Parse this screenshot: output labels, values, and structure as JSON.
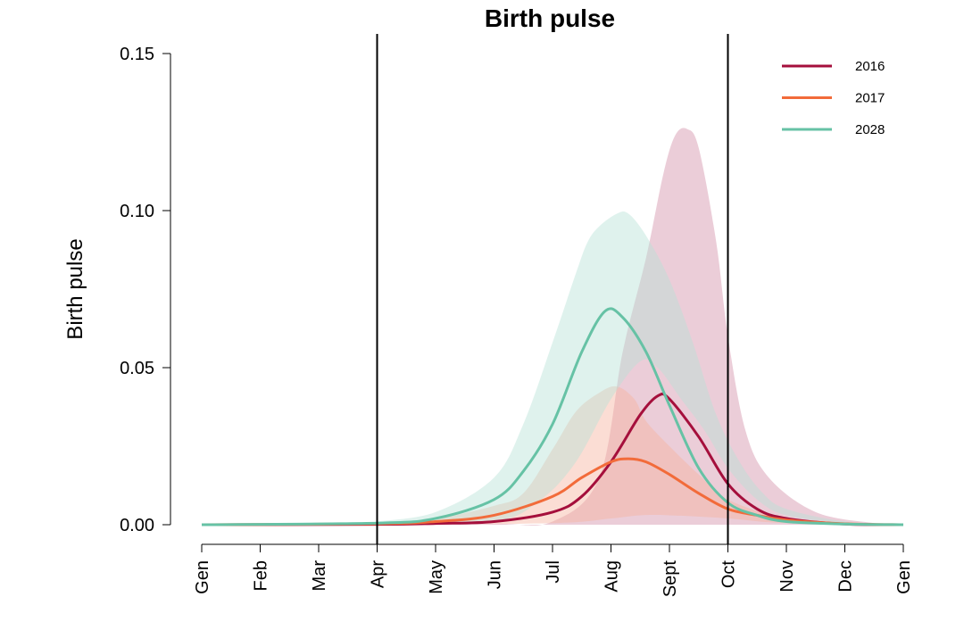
{
  "chart_data": {
    "type": "line",
    "title": "Birth pulse",
    "xlabel": "",
    "ylabel": "Birth pulse",
    "x_categories": [
      "Gen",
      "Feb",
      "Mar",
      "Apr",
      "May",
      "Jun",
      "Jul",
      "Aug",
      "Sept",
      "Oct",
      "Nov",
      "Dec",
      "Gen"
    ],
    "ylim": [
      0,
      0.15
    ],
    "y_ticks": [
      "0.00",
      "0.05",
      "0.10",
      "0.15"
    ],
    "y_tick_values": [
      0,
      0.05,
      0.1,
      0.15
    ],
    "vertical_lines_month_index": [
      3,
      9
    ],
    "legend_position": "top-right",
    "grid": false,
    "series": [
      {
        "name": "2016",
        "color": "#a50f3c",
        "band_color": "#c7708f",
        "band_opacity": 0.35,
        "points": [
          [
            0,
            0
          ],
          [
            3,
            0.0001
          ],
          [
            4,
            0.0004
          ],
          [
            5,
            0.001
          ],
          [
            6,
            0.004
          ],
          [
            6.5,
            0.009
          ],
          [
            7,
            0.02
          ],
          [
            7.5,
            0.035
          ],
          [
            7.8,
            0.041
          ],
          [
            8,
            0.04
          ],
          [
            8.5,
            0.028
          ],
          [
            9,
            0.013
          ],
          [
            9.5,
            0.005
          ],
          [
            10,
            0.002
          ],
          [
            11,
            0.0002
          ],
          [
            12,
            0
          ]
        ],
        "band_upper": [
          [
            3,
            0
          ],
          [
            5,
            0.0003
          ],
          [
            6,
            0.001
          ],
          [
            6.8,
            0.015
          ],
          [
            7.2,
            0.055
          ],
          [
            7.6,
            0.085
          ],
          [
            7.9,
            0.112
          ],
          [
            8.1,
            0.124
          ],
          [
            8.3,
            0.126
          ],
          [
            8.5,
            0.12
          ],
          [
            8.8,
            0.09
          ],
          [
            9.0,
            0.06
          ],
          [
            9.3,
            0.03
          ],
          [
            9.7,
            0.015
          ],
          [
            10.5,
            0.004
          ],
          [
            11.5,
            0.0005
          ],
          [
            12,
            0
          ]
        ],
        "band_lower": [
          [
            3,
            0
          ],
          [
            12,
            0
          ]
        ]
      },
      {
        "name": "2017",
        "color": "#f26b3a",
        "band_color": "#f7b3a0",
        "band_opacity": 0.45,
        "points": [
          [
            0,
            0
          ],
          [
            3,
            0.0003
          ],
          [
            4,
            0.001
          ],
          [
            5,
            0.003
          ],
          [
            6,
            0.009
          ],
          [
            6.5,
            0.015
          ],
          [
            7,
            0.02
          ],
          [
            7.3,
            0.021
          ],
          [
            7.6,
            0.02
          ],
          [
            8,
            0.016
          ],
          [
            8.5,
            0.01
          ],
          [
            9,
            0.005
          ],
          [
            9.5,
            0.003
          ],
          [
            10,
            0.0015
          ],
          [
            11,
            0.0003
          ],
          [
            12,
            0
          ]
        ],
        "band_upper": [
          [
            3,
            0.0005
          ],
          [
            4,
            0.002
          ],
          [
            5,
            0.006
          ],
          [
            5.5,
            0.01
          ],
          [
            6,
            0.024
          ],
          [
            6.4,
            0.036
          ],
          [
            6.8,
            0.042
          ],
          [
            7.1,
            0.044
          ],
          [
            7.4,
            0.04
          ],
          [
            7.6,
            0.033
          ],
          [
            8,
            0.025
          ],
          [
            8.5,
            0.016
          ],
          [
            9,
            0.008
          ],
          [
            10,
            0.002
          ],
          [
            11,
            0.0005
          ],
          [
            12,
            0
          ]
        ],
        "band_lower": [
          [
            3,
            0
          ],
          [
            6,
            0.0005
          ],
          [
            7,
            0.002
          ],
          [
            7.5,
            0.003
          ],
          [
            8,
            0.003
          ],
          [
            9,
            0.002
          ],
          [
            10,
            0.0005
          ],
          [
            12,
            0
          ]
        ]
      },
      {
        "name": "2028",
        "color": "#66c2a5",
        "band_color": "#b8e3d6",
        "band_opacity": 0.45,
        "points": [
          [
            0,
            0
          ],
          [
            3,
            0.0005
          ],
          [
            4,
            0.002
          ],
          [
            5,
            0.008
          ],
          [
            5.5,
            0.017
          ],
          [
            6,
            0.032
          ],
          [
            6.5,
            0.055
          ],
          [
            6.9,
            0.068
          ],
          [
            7.2,
            0.066
          ],
          [
            7.6,
            0.055
          ],
          [
            8,
            0.038
          ],
          [
            8.5,
            0.018
          ],
          [
            9,
            0.007
          ],
          [
            9.5,
            0.003
          ],
          [
            10,
            0.001
          ],
          [
            11,
            0.0002
          ],
          [
            12,
            0
          ]
        ],
        "band_upper": [
          [
            3,
            0.001
          ],
          [
            4,
            0.004
          ],
          [
            5,
            0.015
          ],
          [
            5.5,
            0.032
          ],
          [
            6,
            0.058
          ],
          [
            6.4,
            0.08
          ],
          [
            6.6,
            0.09
          ],
          [
            6.8,
            0.095
          ],
          [
            7.1,
            0.099
          ],
          [
            7.3,
            0.099
          ],
          [
            7.6,
            0.092
          ],
          [
            8,
            0.078
          ],
          [
            8.4,
            0.058
          ],
          [
            8.8,
            0.035
          ],
          [
            9.2,
            0.02
          ],
          [
            9.6,
            0.01
          ],
          [
            10,
            0.005
          ],
          [
            11,
            0.001
          ],
          [
            12,
            0
          ]
        ],
        "band_lower": [
          [
            3,
            0
          ],
          [
            5,
            0.001
          ],
          [
            5.8,
            0.008
          ],
          [
            6.4,
            0.02
          ],
          [
            7,
            0.04
          ],
          [
            7.5,
            0.052
          ],
          [
            7.8,
            0.05
          ],
          [
            8.2,
            0.04
          ],
          [
            8.6,
            0.03
          ],
          [
            9.0,
            0.018
          ],
          [
            9.5,
            0.008
          ],
          [
            10,
            0.003
          ],
          [
            11,
            0.0005
          ],
          [
            12,
            0
          ]
        ]
      }
    ]
  }
}
